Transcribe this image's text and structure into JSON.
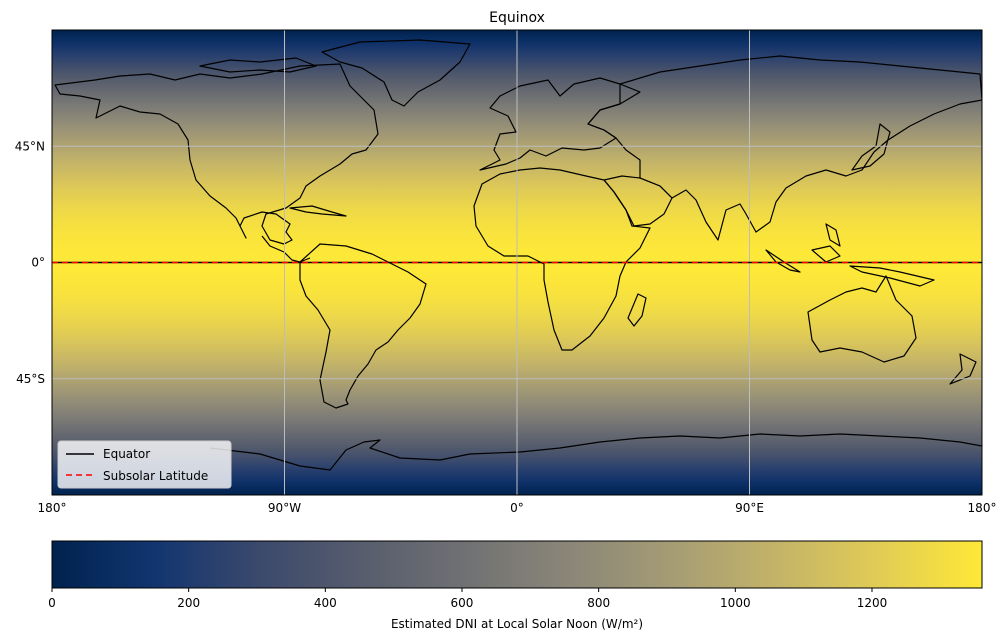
{
  "title": "Equinox",
  "map": {
    "projection": "plate-carree",
    "lon_range": [
      -180,
      180
    ],
    "lat_range": [
      -90,
      90
    ],
    "gridlines": true,
    "x_ticks": [
      {
        "lon": -180,
        "label": "180°"
      },
      {
        "lon": -90,
        "label": "90°W"
      },
      {
        "lon": 0,
        "label": "0°"
      },
      {
        "lon": 90,
        "label": "90°E"
      },
      {
        "lon": 180,
        "label": "180°"
      }
    ],
    "y_ticks": [
      {
        "lat": 45,
        "label": "45°N"
      },
      {
        "lat": 0,
        "label": "0°"
      },
      {
        "lat": -45,
        "label": "45°S"
      }
    ],
    "equator_lat": 0,
    "subsolar_lat": 0,
    "field": "DNI ≈ 1361·cos(latitude − subsolar latitude)",
    "colormap": "cividis",
    "colors": {
      "cividis": [
        "#00224e",
        "#123570",
        "#3b496c",
        "#575d6d",
        "#707173",
        "#8a8678",
        "#a59c74",
        "#c3b369",
        "#e1cc55",
        "#fee838"
      ],
      "coastline": "#000000",
      "equator_line": "#000000",
      "subsolar_line": "#ff0000",
      "gridline": "#bdbdbd"
    }
  },
  "legend": {
    "location": "lower-left",
    "entries": [
      {
        "label": "Equator",
        "style": "solid",
        "color": "#000000"
      },
      {
        "label": "Subsolar Latitude",
        "style": "dashed",
        "color": "#ff0000"
      }
    ]
  },
  "colorbar": {
    "label": "Estimated DNI at Local Solar Noon (W/m²)",
    "min": 0,
    "max": 1361,
    "ticks": [
      {
        "value": 0,
        "label": "0"
      },
      {
        "value": 200,
        "label": "200"
      },
      {
        "value": 400,
        "label": "400"
      },
      {
        "value": 600,
        "label": "600"
      },
      {
        "value": 800,
        "label": "800"
      },
      {
        "value": 1000,
        "label": "1000"
      },
      {
        "value": 1200,
        "label": "1200"
      }
    ]
  },
  "chart_data": {
    "type": "heatmap",
    "title": "Equinox",
    "x_ticks": [
      "180°",
      "90°W",
      "0°",
      "90°E",
      "180°"
    ],
    "y_ticks": [
      "45°N",
      "0°",
      "45°S"
    ],
    "xlim": [
      -180,
      180
    ],
    "ylim": [
      -90,
      90
    ],
    "colorbar_label": "Estimated DNI at Local Solar Noon (W/m²)",
    "colorbar_range": [
      0,
      1361
    ],
    "legend": [
      "Equator",
      "Subsolar Latitude"
    ],
    "subsolar_latitude": 0
  }
}
